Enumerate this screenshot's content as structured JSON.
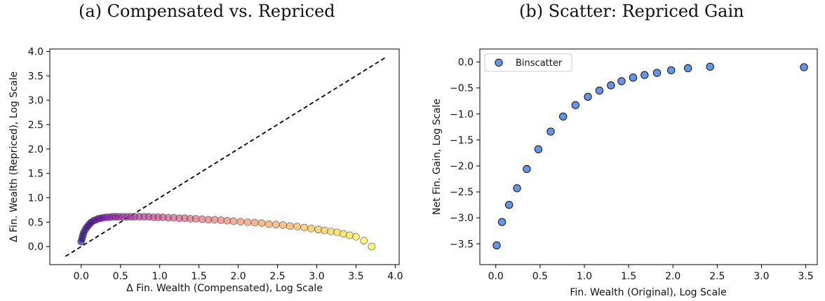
{
  "chart_data": [
    {
      "type": "scatter",
      "title": "(a) Compensated vs. Repriced",
      "xlabel": "Δ Fin. Wealth (Compensated), Log Scale",
      "ylabel": "Δ Fin. Wealth (Repriced), Log Scale",
      "xlim": [
        -0.4,
        4.05
      ],
      "ylim": [
        -0.37,
        4.05
      ],
      "xticks": [
        0.0,
        0.5,
        1.0,
        1.5,
        2.0,
        2.5,
        3.0,
        3.5,
        4.0
      ],
      "yticks": [
        0.0,
        0.5,
        1.0,
        1.5,
        2.0,
        2.5,
        3.0,
        3.5,
        4.0
      ],
      "tick_labels_x": [
        "0.0",
        "0.5",
        "1.0",
        "1.5",
        "2.0",
        "2.5",
        "3.0",
        "3.5",
        "4.0"
      ],
      "tick_labels_y": [
        "0.0",
        "0.5",
        "1.0",
        "1.5",
        "2.0",
        "2.5",
        "3.0",
        "3.5",
        "4.0"
      ],
      "colormap": [
        "#0d0887",
        "#6a00a8",
        "#b12a90",
        "#e16462",
        "#fca636",
        "#f0f921"
      ],
      "reference_line": {
        "style": "dashed",
        "color": "#000000",
        "x": [
          -0.2,
          3.87
        ],
        "y": [
          -0.2,
          3.87
        ]
      },
      "x": [
        0.0,
        0.01,
        0.02,
        0.03,
        0.05,
        0.07,
        0.09,
        0.11,
        0.13,
        0.16,
        0.19,
        0.22,
        0.25,
        0.28,
        0.32,
        0.36,
        0.4,
        0.44,
        0.48,
        0.53,
        0.58,
        0.63,
        0.68,
        0.74,
        0.8,
        0.86,
        0.92,
        0.98,
        1.04,
        1.11,
        1.18,
        1.25,
        1.32,
        1.39,
        1.46,
        1.54,
        1.62,
        1.7,
        1.78,
        1.86,
        1.94,
        2.03,
        2.12,
        2.21,
        2.3,
        2.39,
        2.48,
        2.57,
        2.66,
        2.75,
        2.84,
        2.93,
        3.02,
        3.1,
        3.18,
        3.26,
        3.34,
        3.42,
        3.5,
        3.6,
        3.7
      ],
      "y": [
        0.1,
        0.16,
        0.22,
        0.28,
        0.34,
        0.39,
        0.43,
        0.47,
        0.5,
        0.53,
        0.55,
        0.57,
        0.58,
        0.59,
        0.6,
        0.6,
        0.61,
        0.61,
        0.61,
        0.61,
        0.61,
        0.61,
        0.61,
        0.61,
        0.61,
        0.61,
        0.6,
        0.6,
        0.6,
        0.59,
        0.59,
        0.58,
        0.58,
        0.57,
        0.57,
        0.56,
        0.55,
        0.55,
        0.54,
        0.53,
        0.52,
        0.51,
        0.5,
        0.49,
        0.48,
        0.46,
        0.45,
        0.44,
        0.42,
        0.41,
        0.39,
        0.37,
        0.35,
        0.33,
        0.31,
        0.29,
        0.26,
        0.23,
        0.2,
        0.12,
        0.0
      ]
    },
    {
      "type": "scatter",
      "title": "(b) Scatter: Repriced Gain",
      "xlabel": "Fin. Wealth (Original), Log Scale",
      "ylabel": "Net Fin. Gain, Log Scale",
      "xlim": [
        -0.18,
        3.63
      ],
      "ylim": [
        -3.9,
        0.25
      ],
      "xticks": [
        0.0,
        0.5,
        1.0,
        1.5,
        2.0,
        2.5,
        3.0,
        3.5
      ],
      "yticks": [
        0.0,
        -0.5,
        -1.0,
        -1.5,
        -2.0,
        -2.5,
        -3.0,
        -3.5
      ],
      "tick_labels_x": [
        "0.0",
        "0.5",
        "1.0",
        "1.5",
        "2.0",
        "2.5",
        "3.0",
        "3.5"
      ],
      "tick_labels_y": [
        "0.0",
        "−0.5",
        "−1.0",
        "−1.5",
        "−2.0",
        "−2.5",
        "−3.0",
        "−3.5"
      ],
      "legend": {
        "label": "Binscatter",
        "placement": "top-left"
      },
      "marker_color": "#6495ed",
      "x": [
        0.01,
        0.07,
        0.15,
        0.24,
        0.35,
        0.48,
        0.62,
        0.76,
        0.9,
        1.04,
        1.17,
        1.3,
        1.42,
        1.55,
        1.68,
        1.82,
        1.98,
        2.17,
        2.42,
        3.48
      ],
      "y": [
        -3.53,
        -3.08,
        -2.75,
        -2.43,
        -2.06,
        -1.68,
        -1.34,
        -1.05,
        -0.83,
        -0.67,
        -0.55,
        -0.45,
        -0.37,
        -0.3,
        -0.25,
        -0.21,
        -0.16,
        -0.12,
        -0.09,
        -0.1
      ]
    }
  ]
}
